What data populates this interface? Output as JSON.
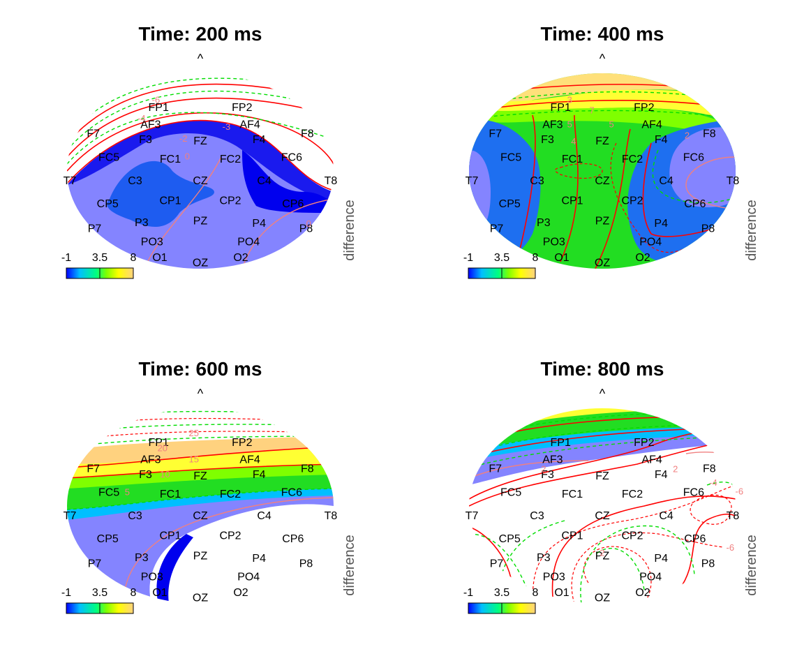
{
  "chart_data": {
    "type": "heatmap",
    "figure": "scalp topography grid",
    "colormap": [
      "#0000ff",
      "#00bfff",
      "#00ff7f",
      "#7fff00",
      "#ffff00",
      "#ffd27f"
    ],
    "positive_contour_color": "#ff0000",
    "negative_contour_color": "#00dd00",
    "level_line_color": "#f08080",
    "grid": false,
    "nose_marker": "^",
    "ylabel": "difference",
    "colorbar": {
      "ticks": [
        "-1",
        "3.5",
        "8"
      ],
      "range": [
        -1,
        8
      ]
    },
    "electrodes": [
      {
        "name": "FP1",
        "x": -0.32,
        "y": 0.86
      },
      {
        "name": "FP2",
        "x": 0.32,
        "y": 0.86
      },
      {
        "name": "AF3",
        "x": -0.38,
        "y": 0.63
      },
      {
        "name": "AF4",
        "x": 0.38,
        "y": 0.63
      },
      {
        "name": "F7",
        "x": -0.82,
        "y": 0.51
      },
      {
        "name": "F3",
        "x": -0.42,
        "y": 0.43
      },
      {
        "name": "FZ",
        "x": 0.0,
        "y": 0.41
      },
      {
        "name": "F4",
        "x": 0.45,
        "y": 0.43
      },
      {
        "name": "F8",
        "x": 0.82,
        "y": 0.51
      },
      {
        "name": "FC5",
        "x": -0.7,
        "y": 0.19
      },
      {
        "name": "FC1",
        "x": -0.23,
        "y": 0.17
      },
      {
        "name": "FC2",
        "x": 0.23,
        "y": 0.17
      },
      {
        "name": "FC6",
        "x": 0.7,
        "y": 0.19
      },
      {
        "name": "T7",
        "x": -1.0,
        "y": -0.12
      },
      {
        "name": "C3",
        "x": -0.5,
        "y": -0.12
      },
      {
        "name": "CZ",
        "x": 0.0,
        "y": -0.12
      },
      {
        "name": "C4",
        "x": 0.49,
        "y": -0.12
      },
      {
        "name": "T8",
        "x": 1.0,
        "y": -0.12
      },
      {
        "name": "CP5",
        "x": -0.71,
        "y": -0.43
      },
      {
        "name": "CP1",
        "x": -0.23,
        "y": -0.39
      },
      {
        "name": "CP2",
        "x": 0.23,
        "y": -0.39
      },
      {
        "name": "CP6",
        "x": 0.71,
        "y": -0.43
      },
      {
        "name": "P7",
        "x": -0.81,
        "y": -0.76
      },
      {
        "name": "P3",
        "x": -0.45,
        "y": -0.68
      },
      {
        "name": "PZ",
        "x": 0.0,
        "y": -0.66
      },
      {
        "name": "P4",
        "x": 0.45,
        "y": -0.69
      },
      {
        "name": "P8",
        "x": 0.81,
        "y": -0.76
      },
      {
        "name": "PO3",
        "x": -0.37,
        "y": -0.94
      },
      {
        "name": "PO4",
        "x": 0.37,
        "y": -0.94
      },
      {
        "name": "O1",
        "x": -0.31,
        "y": -1.15
      },
      {
        "name": "OZ",
        "x": 0.0,
        "y": -1.22
      },
      {
        "name": "O2",
        "x": 0.31,
        "y": -1.15
      }
    ],
    "panels": [
      {
        "title": "Time: 200 ms",
        "level_labels": [
          {
            "text": "-6",
            "x": -0.34,
            "y": 0.96
          },
          {
            "text": "-4",
            "x": -0.45,
            "y": 0.71
          },
          {
            "text": "-3",
            "x": 0.2,
            "y": 0.6
          },
          {
            "text": "-2",
            "x": -0.13,
            "y": 0.44
          },
          {
            "text": "0",
            "x": -0.1,
            "y": 0.2
          },
          {
            "text": "0",
            "x": 0.83,
            "y": -0.7
          }
        ]
      },
      {
        "title": "Time: 400 ms",
        "level_labels": [
          {
            "text": "3",
            "x": -0.25,
            "y": 0.96
          },
          {
            "text": "7",
            "x": -0.08,
            "y": 0.82
          },
          {
            "text": "5",
            "x": -0.25,
            "y": 0.63
          },
          {
            "text": "5",
            "x": 0.07,
            "y": 0.63
          },
          {
            "text": "4",
            "x": -0.22,
            "y": 0.4
          },
          {
            "text": "2",
            "x": 0.65,
            "y": 0.48
          }
        ]
      },
      {
        "title": "Time: 600 ms",
        "level_labels": [
          {
            "text": "25",
            "x": -0.05,
            "y": 0.98
          },
          {
            "text": "20",
            "x": -0.29,
            "y": 0.78
          },
          {
            "text": "15",
            "x": -0.05,
            "y": 0.63
          },
          {
            "text": "10",
            "x": -0.27,
            "y": 0.43
          },
          {
            "text": "5",
            "x": -0.56,
            "y": 0.19
          }
        ]
      },
      {
        "title": "Time: 800 ms",
        "level_labels": [
          {
            "text": "2",
            "x": -0.45,
            "y": 0.5
          },
          {
            "text": "2",
            "x": 0.56,
            "y": 0.5
          },
          {
            "text": "-4",
            "x": 0.85,
            "y": 0.32
          },
          {
            "text": "-6",
            "x": 1.05,
            "y": 0.2
          },
          {
            "text": "-6",
            "x": 0.98,
            "y": -0.55
          },
          {
            "text": "2",
            "x": 0.0,
            "y": -0.62
          }
        ]
      }
    ]
  }
}
